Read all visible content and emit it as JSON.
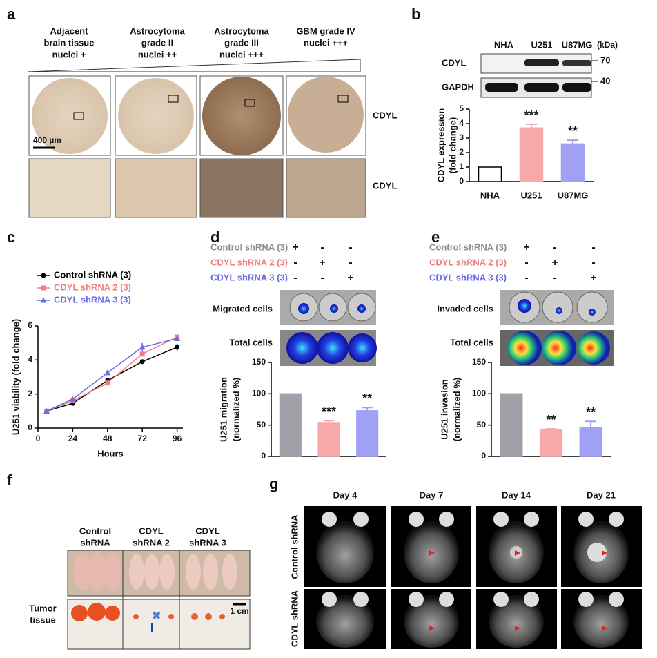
{
  "panel_labels": [
    "a",
    "b",
    "c",
    "d",
    "e",
    "f",
    "g"
  ],
  "panel_a": {
    "columns": [
      [
        "Adjacent",
        "brain tissue",
        "nuclei +"
      ],
      [
        "Astrocytoma",
        "grade II",
        "nuclei ++"
      ],
      [
        "Astrocytoma",
        "grade III",
        "nuclei +++"
      ],
      [
        "GBM grade IV",
        "nuclei +++"
      ]
    ],
    "row_labels": [
      "CDYL",
      "CDYL"
    ],
    "scale_bar": "400 µm"
  },
  "panel_b_blot": {
    "lanes": [
      "NHA",
      "U251",
      "U87MG"
    ],
    "unit": "(kDa)",
    "rows": [
      "CDYL",
      "GAPDH"
    ],
    "markers": [
      "70",
      "40"
    ]
  },
  "panel_d": {
    "conditions": [
      "Control shRNA (3)",
      "CDYL shRNA 2 (3)",
      "CDYL shRNA 3 (3)"
    ],
    "condition_colors": [
      "#8c8c8c",
      "#f08080",
      "#6a6ae8"
    ],
    "signs": [
      [
        "+",
        "-",
        "-"
      ],
      [
        "-",
        "+",
        "-"
      ],
      [
        "-",
        "-",
        "+"
      ]
    ],
    "rows": [
      "Migrated cells",
      "Total cells"
    ]
  },
  "panel_e": {
    "conditions": [
      "Control shRNA (3)",
      "CDYL shRNA 2 (3)",
      "CDYL shRNA 3 (3)"
    ],
    "condition_colors": [
      "#8c8c8c",
      "#f08080",
      "#6a6ae8"
    ],
    "signs": [
      [
        "+",
        "-",
        "-"
      ],
      [
        "-",
        "+",
        "-"
      ],
      [
        "-",
        "-",
        "+"
      ]
    ],
    "rows": [
      "Invaded cells",
      "Total cells"
    ]
  },
  "panel_f": {
    "columns": [
      [
        "Control",
        "shRNA"
      ],
      [
        "CDYL",
        "shRNA 2"
      ],
      [
        "CDYL",
        "shRNA 3"
      ]
    ],
    "row_label": [
      "Tumor",
      "tissue"
    ],
    "scale_bar": "1 cm"
  },
  "panel_g": {
    "days": [
      "Day 4",
      "Day 7",
      "Day 14",
      "Day 21"
    ],
    "rows": [
      "Control shRNA",
      "CDYL shRNA"
    ]
  },
  "chart_data": [
    {
      "type": "bar",
      "y_label": [
        "CDYL expression",
        "(fold change)"
      ],
      "categories": [
        "NHA",
        "U251",
        "U87MG"
      ],
      "values": [
        1,
        3.7,
        2.6
      ],
      "errors": [
        0,
        0.25,
        0.25
      ],
      "annotations": [
        null,
        "***",
        "**"
      ],
      "colors": [
        "#ffffff",
        "#f7a8a8",
        "#a0a0f4"
      ],
      "edge_colors": [
        "#000000",
        "#f7a8a8",
        "#a0a0f4"
      ],
      "ylim": [
        0,
        5
      ],
      "yticks": [
        0,
        1,
        2,
        3,
        4,
        5
      ]
    },
    {
      "type": "line",
      "y_label": [
        "U251 viability (fold change)"
      ],
      "x_label": "Hours",
      "x": [
        6,
        24,
        48,
        72,
        96
      ],
      "xlim": [
        0,
        100
      ],
      "xticks": [
        0,
        24,
        48,
        72,
        96
      ],
      "ylim": [
        0,
        6
      ],
      "yticks": [
        0,
        2,
        4,
        6
      ],
      "series": [
        {
          "name": "Control shRNA (3)",
          "color": "#000000",
          "marker": "circle",
          "values": [
            1,
            1.45,
            2.8,
            3.9,
            4.75
          ],
          "errors": [
            0.05,
            0.08,
            0.1,
            0.08,
            0.2
          ]
        },
        {
          "name": "CDYL shRNA 2 (3)",
          "color": "#f08080",
          "marker": "square",
          "values": [
            1,
            1.6,
            2.65,
            4.35,
            5.35
          ],
          "errors": [
            0.05,
            0.08,
            0.1,
            0.1,
            0.1
          ]
        },
        {
          "name": "CDYL shRNA 3 (3)",
          "color": "#6a6ae8",
          "marker": "triangle",
          "values": [
            1,
            1.7,
            3.25,
            4.75,
            5.25
          ],
          "errors": [
            0.05,
            0.1,
            0.08,
            0.25,
            0.1
          ]
        }
      ]
    },
    {
      "type": "bar",
      "y_label": [
        "U251 migration",
        "(normalized %)"
      ],
      "categories": [
        null,
        null,
        null
      ],
      "values": [
        100,
        54,
        73
      ],
      "errors": [
        0,
        3,
        5
      ],
      "annotations": [
        null,
        "***",
        "**"
      ],
      "colors": [
        "#a0a0a8",
        "#f7a8a8",
        "#a0a0f4"
      ],
      "edge_colors": [
        "#a0a0a8",
        "#f7a8a8",
        "#a0a0f4"
      ],
      "ylim": [
        0,
        150
      ],
      "yticks": [
        0,
        50,
        100,
        150
      ]
    },
    {
      "type": "bar",
      "y_label": [
        "U251 invasion",
        "(normalized %)"
      ],
      "categories": [
        null,
        null,
        null
      ],
      "values": [
        100,
        43,
        46
      ],
      "errors": [
        0,
        1,
        10
      ],
      "annotations": [
        null,
        "**",
        "**"
      ],
      "colors": [
        "#a0a0a8",
        "#f7a8a8",
        "#a0a0f4"
      ],
      "edge_colors": [
        "#a0a0a8",
        "#f7a8a8",
        "#a0a0f4"
      ],
      "ylim": [
        0,
        150
      ],
      "yticks": [
        0,
        50,
        100,
        150
      ]
    }
  ]
}
